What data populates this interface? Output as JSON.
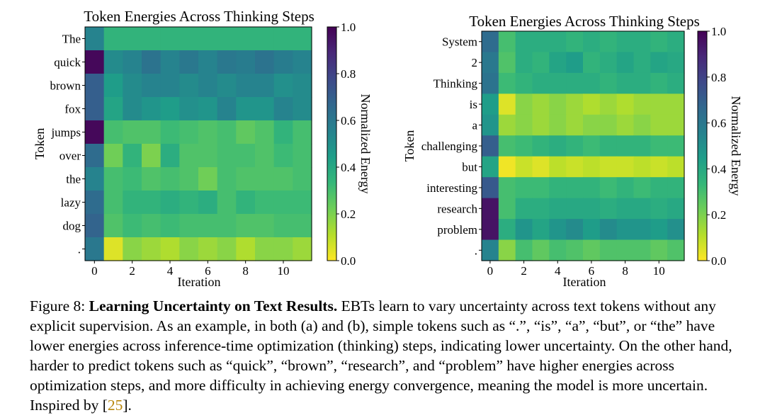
{
  "colors": {
    "colormap_viridis_reversed": [
      "#fde725",
      "#b5de2b",
      "#6ece58",
      "#35b779",
      "#1f9e89",
      "#26828e",
      "#31688e",
      "#3e4989",
      "#482878",
      "#440154"
    ],
    "citation": "#b8860b",
    "text": "#000000"
  },
  "chart_data": [
    {
      "type": "heatmap",
      "title": "Token Energies Across Thinking Steps",
      "xlabel": "Iteration",
      "ylabel": "Token",
      "x_ticks": [
        0,
        2,
        4,
        6,
        8,
        10
      ],
      "x_range": [
        0,
        11
      ],
      "rows": [
        "The",
        "quick",
        "brown",
        "fox",
        "jumps",
        "over",
        "the",
        "lazy",
        "dog",
        "."
      ],
      "values": [
        [
          0.55,
          0.35,
          0.35,
          0.35,
          0.35,
          0.35,
          0.35,
          0.35,
          0.35,
          0.35,
          0.35,
          0.35
        ],
        [
          0.98,
          0.52,
          0.55,
          0.62,
          0.55,
          0.6,
          0.55,
          0.6,
          0.58,
          0.62,
          0.58,
          0.55
        ],
        [
          0.7,
          0.45,
          0.52,
          0.55,
          0.55,
          0.52,
          0.55,
          0.52,
          0.55,
          0.55,
          0.5,
          0.52
        ],
        [
          0.7,
          0.42,
          0.52,
          0.48,
          0.45,
          0.5,
          0.48,
          0.55,
          0.48,
          0.48,
          0.55,
          0.52
        ],
        [
          0.98,
          0.3,
          0.28,
          0.28,
          0.32,
          0.3,
          0.28,
          0.3,
          0.25,
          0.28,
          0.35,
          0.3
        ],
        [
          0.65,
          0.22,
          0.35,
          0.2,
          0.38,
          0.28,
          0.28,
          0.3,
          0.3,
          0.28,
          0.32,
          0.3
        ],
        [
          0.55,
          0.3,
          0.32,
          0.28,
          0.3,
          0.28,
          0.22,
          0.3,
          0.28,
          0.28,
          0.28,
          0.3
        ],
        [
          0.65,
          0.3,
          0.35,
          0.35,
          0.38,
          0.35,
          0.38,
          0.3,
          0.35,
          0.32,
          0.32,
          0.32
        ],
        [
          0.68,
          0.28,
          0.32,
          0.3,
          0.32,
          0.3,
          0.3,
          0.3,
          0.28,
          0.28,
          0.3,
          0.3
        ],
        [
          0.6,
          0.05,
          0.18,
          0.15,
          0.12,
          0.18,
          0.15,
          0.18,
          0.12,
          0.18,
          0.18,
          0.15
        ]
      ],
      "colorbar": {
        "label": "Normalized Energy",
        "range": [
          0.0,
          1.0
        ],
        "ticks": [
          "0.0",
          "0.2",
          "0.4",
          "0.6",
          "0.8",
          "1.0"
        ]
      }
    },
    {
      "type": "heatmap",
      "title": "Token Energies Across Thinking Steps",
      "xlabel": "Iteration",
      "ylabel": "Token",
      "x_ticks": [
        0,
        2,
        4,
        6,
        8,
        10
      ],
      "x_range": [
        0,
        11
      ],
      "rows": [
        "System",
        "2",
        "Thinking",
        "is",
        "a",
        "challenging",
        "but",
        "interesting",
        "research",
        "problem",
        "."
      ],
      "values": [
        [
          0.65,
          0.3,
          0.38,
          0.38,
          0.38,
          0.35,
          0.38,
          0.35,
          0.38,
          0.38,
          0.35,
          0.38
        ],
        [
          0.6,
          0.28,
          0.38,
          0.35,
          0.42,
          0.45,
          0.35,
          0.38,
          0.42,
          0.38,
          0.42,
          0.4
        ],
        [
          0.62,
          0.32,
          0.35,
          0.38,
          0.38,
          0.38,
          0.38,
          0.35,
          0.38,
          0.38,
          0.35,
          0.38
        ],
        [
          0.45,
          0.05,
          0.18,
          0.15,
          0.18,
          0.15,
          0.12,
          0.15,
          0.12,
          0.15,
          0.15,
          0.15
        ],
        [
          0.48,
          0.15,
          0.18,
          0.15,
          0.18,
          0.15,
          0.18,
          0.18,
          0.15,
          0.18,
          0.15,
          0.15
        ],
        [
          0.7,
          0.3,
          0.32,
          0.35,
          0.38,
          0.35,
          0.32,
          0.35,
          0.35,
          0.35,
          0.32,
          0.32
        ],
        [
          0.42,
          0.02,
          0.08,
          0.05,
          0.1,
          0.08,
          0.1,
          0.08,
          0.08,
          0.1,
          0.08,
          0.1
        ],
        [
          0.72,
          0.3,
          0.32,
          0.32,
          0.35,
          0.35,
          0.35,
          0.32,
          0.35,
          0.32,
          0.35,
          0.35
        ],
        [
          0.95,
          0.3,
          0.38,
          0.38,
          0.4,
          0.4,
          0.4,
          0.38,
          0.4,
          0.4,
          0.38,
          0.4
        ],
        [
          0.95,
          0.38,
          0.48,
          0.42,
          0.48,
          0.52,
          0.45,
          0.52,
          0.48,
          0.48,
          0.45,
          0.5
        ],
        [
          0.55,
          0.18,
          0.3,
          0.25,
          0.3,
          0.28,
          0.25,
          0.28,
          0.28,
          0.28,
          0.25,
          0.28
        ]
      ],
      "colorbar": {
        "label": "Normalized Energy",
        "range": [
          0.0,
          1.0
        ],
        "ticks": [
          "0.0",
          "0.2",
          "0.4",
          "0.6",
          "0.8",
          "1.0"
        ]
      }
    }
  ],
  "caption": {
    "figure_label": "Figure 8:",
    "bold_title": "Learning Uncertainty on Text Results.",
    "body": "EBTs learn to vary uncertainty across text tokens without any explicit supervision. As an example, in both (a) and (b), simple tokens such as “.”, “is”, “a”, “but”, or “the” have lower energies across inference-time optimization (thinking) steps, indicating lower uncertainty. On the other hand, harder to predict tokens such as “quick”, “brown”, “research”, and “problem” have higher energies across optimization steps, and more difficulty in achieving energy convergence, meaning the model is more uncertain. Inspired by [",
    "citation": "25",
    "end": "]."
  }
}
